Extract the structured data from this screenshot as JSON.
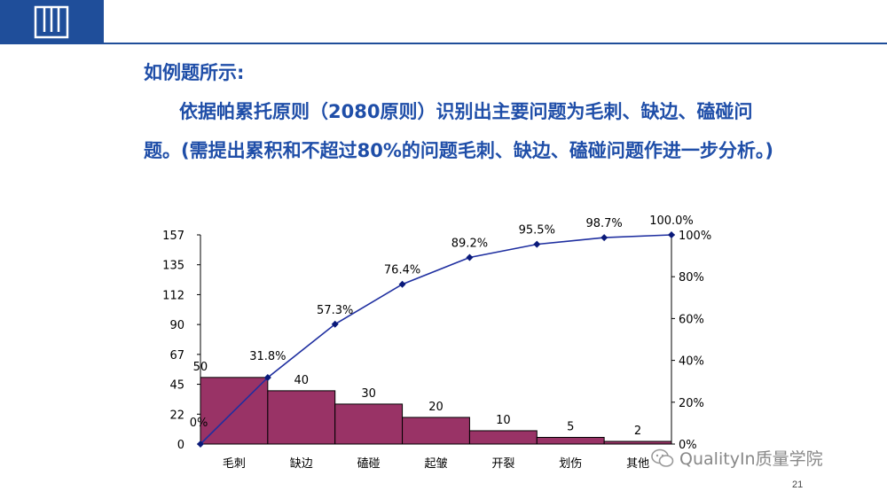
{
  "slide": {
    "heading": "如例题所示:",
    "paragraph": "依据帕累托原则（2080原则）识别出主要问题为毛刺、缺边、磕碰问题。(需提出累积和不超过80%的问题毛刺、缺边、磕碰问题作进一步分析。)",
    "page_number": "21"
  },
  "watermark": {
    "text": "QualityIn质量学院",
    "icon": "wechat-icon"
  },
  "colors": {
    "brand": "#1f4e9a",
    "text": "#1f4ea8",
    "bar": "#993366",
    "line": "#1f2fa0"
  },
  "chart_data": {
    "type": "bar",
    "categories": [
      "毛刺",
      "缺边",
      "磕碰",
      "起皱",
      "开裂",
      "划伤",
      "其他"
    ],
    "values": [
      50,
      40,
      30,
      20,
      10,
      5,
      2
    ],
    "value_labels": [
      "50",
      "40",
      "30",
      "20",
      "10",
      "5",
      "2"
    ],
    "yticks_left": [
      "157",
      "135",
      "112",
      "90",
      "67",
      "45",
      "22",
      "0"
    ],
    "ylim_left": [
      0,
      157
    ],
    "cumulative_line": {
      "type": "line",
      "x": [
        "0",
        "毛刺",
        "缺边",
        "磕碰",
        "起皱",
        "开裂",
        "划伤",
        "其他"
      ],
      "values": [
        0,
        31.8,
        57.3,
        76.4,
        89.2,
        95.5,
        98.7,
        100.0
      ],
      "labels": [
        "0%",
        "31.8%",
        "57.3%",
        "76.4%",
        "89.2%",
        "95.5%",
        "98.7%",
        "100.0%"
      ]
    },
    "yticks_right": [
      "100%",
      "80%",
      "60%",
      "40%",
      "20%",
      "0%"
    ],
    "ylim_right": [
      0,
      100
    ],
    "title": "",
    "xlabel": "",
    "ylabel": "",
    "grid": false,
    "legend": "none"
  }
}
